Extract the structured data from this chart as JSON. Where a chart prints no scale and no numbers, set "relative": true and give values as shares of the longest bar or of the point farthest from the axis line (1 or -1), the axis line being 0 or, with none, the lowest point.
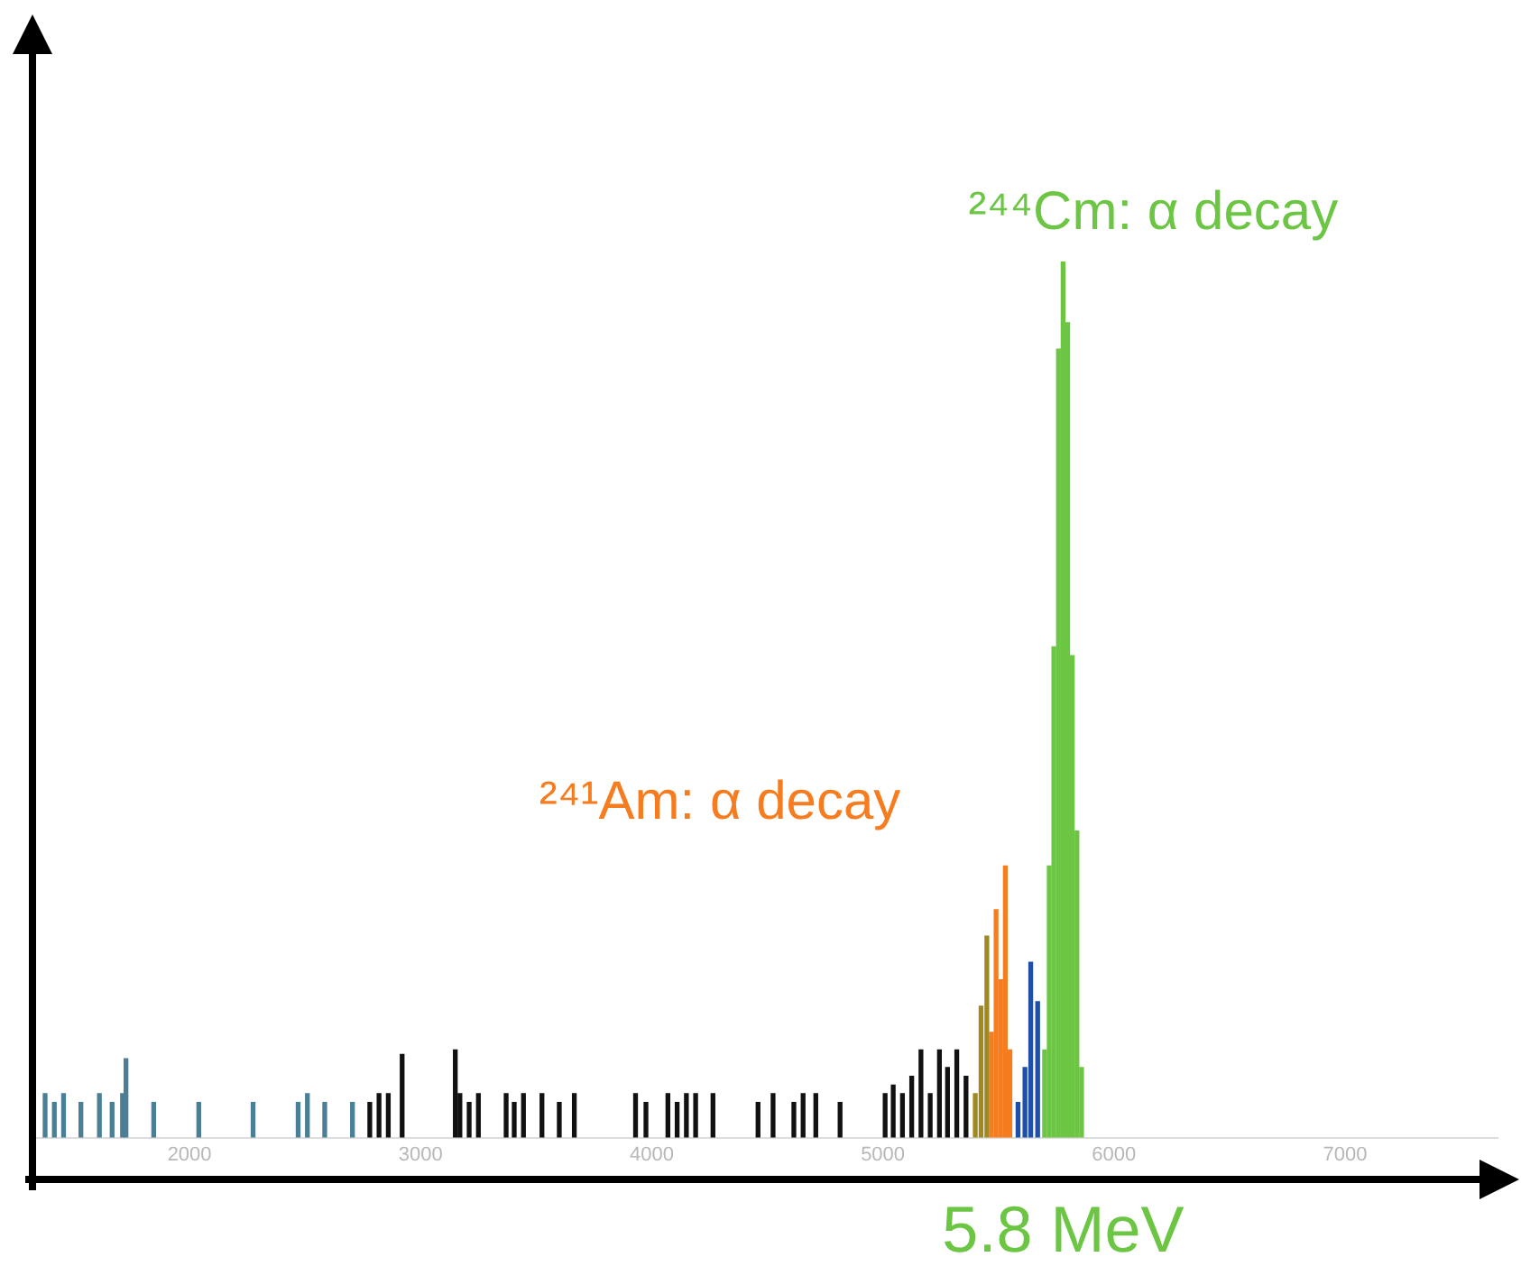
{
  "chart_data": {
    "type": "bar",
    "relative": true,
    "legend": false,
    "grid": false,
    "xlim": [
      1336,
      7660
    ],
    "xticks": [
      2000,
      3000,
      4000,
      5000,
      6000,
      7000
    ],
    "series": [
      {
        "color": "#4a7f95",
        "x": [
          1375,
          1415,
          1455,
          1530,
          1610,
          1665,
          1710,
          1725,
          1845,
          2040,
          2275,
          2470,
          2510,
          2585,
          2705
        ],
        "values": [
          0.05,
          0.04,
          0.05,
          0.04,
          0.05,
          0.04,
          0.05,
          0.09,
          0.04,
          0.04,
          0.04,
          0.04,
          0.05,
          0.04,
          0.04
        ]
      },
      {
        "color": "#111111",
        "x": [
          2780,
          2820,
          2860,
          2920,
          3150,
          3170,
          3210,
          3250,
          3370,
          3405,
          3445,
          3525,
          3600,
          3665,
          3930,
          3975,
          4070,
          4110,
          4150,
          4190,
          4265,
          4460,
          4525,
          4615,
          4655,
          4710,
          4815,
          5010,
          5045,
          5085,
          5125,
          5165,
          5205,
          5245,
          5280,
          5320,
          5360
        ],
        "values": [
          0.04,
          0.05,
          0.05,
          0.095,
          0.1,
          0.05,
          0.04,
          0.05,
          0.05,
          0.04,
          0.05,
          0.05,
          0.04,
          0.05,
          0.05,
          0.04,
          0.05,
          0.04,
          0.05,
          0.05,
          0.05,
          0.04,
          0.05,
          0.04,
          0.05,
          0.05,
          0.04,
          0.05,
          0.06,
          0.05,
          0.07,
          0.1,
          0.05,
          0.1,
          0.08,
          0.1,
          0.07
        ]
      },
      {
        "color": "#a08a20",
        "x": [
          5400,
          5425,
          5450
        ],
        "values": [
          0.05,
          0.15,
          0.23
        ]
      },
      {
        "color": "#f57c1f",
        "x": [
          5470,
          5490,
          5510,
          5530,
          5550
        ],
        "values": [
          0.12,
          0.26,
          0.18,
          0.31,
          0.1
        ]
      },
      {
        "color": "#1f4fa8",
        "x": [
          5585,
          5615,
          5640,
          5670
        ],
        "values": [
          0.04,
          0.08,
          0.2,
          0.155
        ]
      },
      {
        "color": "#6cc644",
        "x": [
          5700,
          5720,
          5740,
          5760,
          5780,
          5800,
          5820,
          5840,
          5860
        ],
        "values": [
          0.1,
          0.31,
          0.56,
          0.9,
          1,
          0.93,
          0.55,
          0.35,
          0.08
        ]
      }
    ],
    "annotations": [
      {
        "text": "²⁴⁴Cm: α decay",
        "x": 5780,
        "y": 1
      },
      {
        "text": "²⁴¹Am: α decay",
        "x": 5530,
        "y": 0.31
      },
      "5.8 MeV"
    ]
  }
}
